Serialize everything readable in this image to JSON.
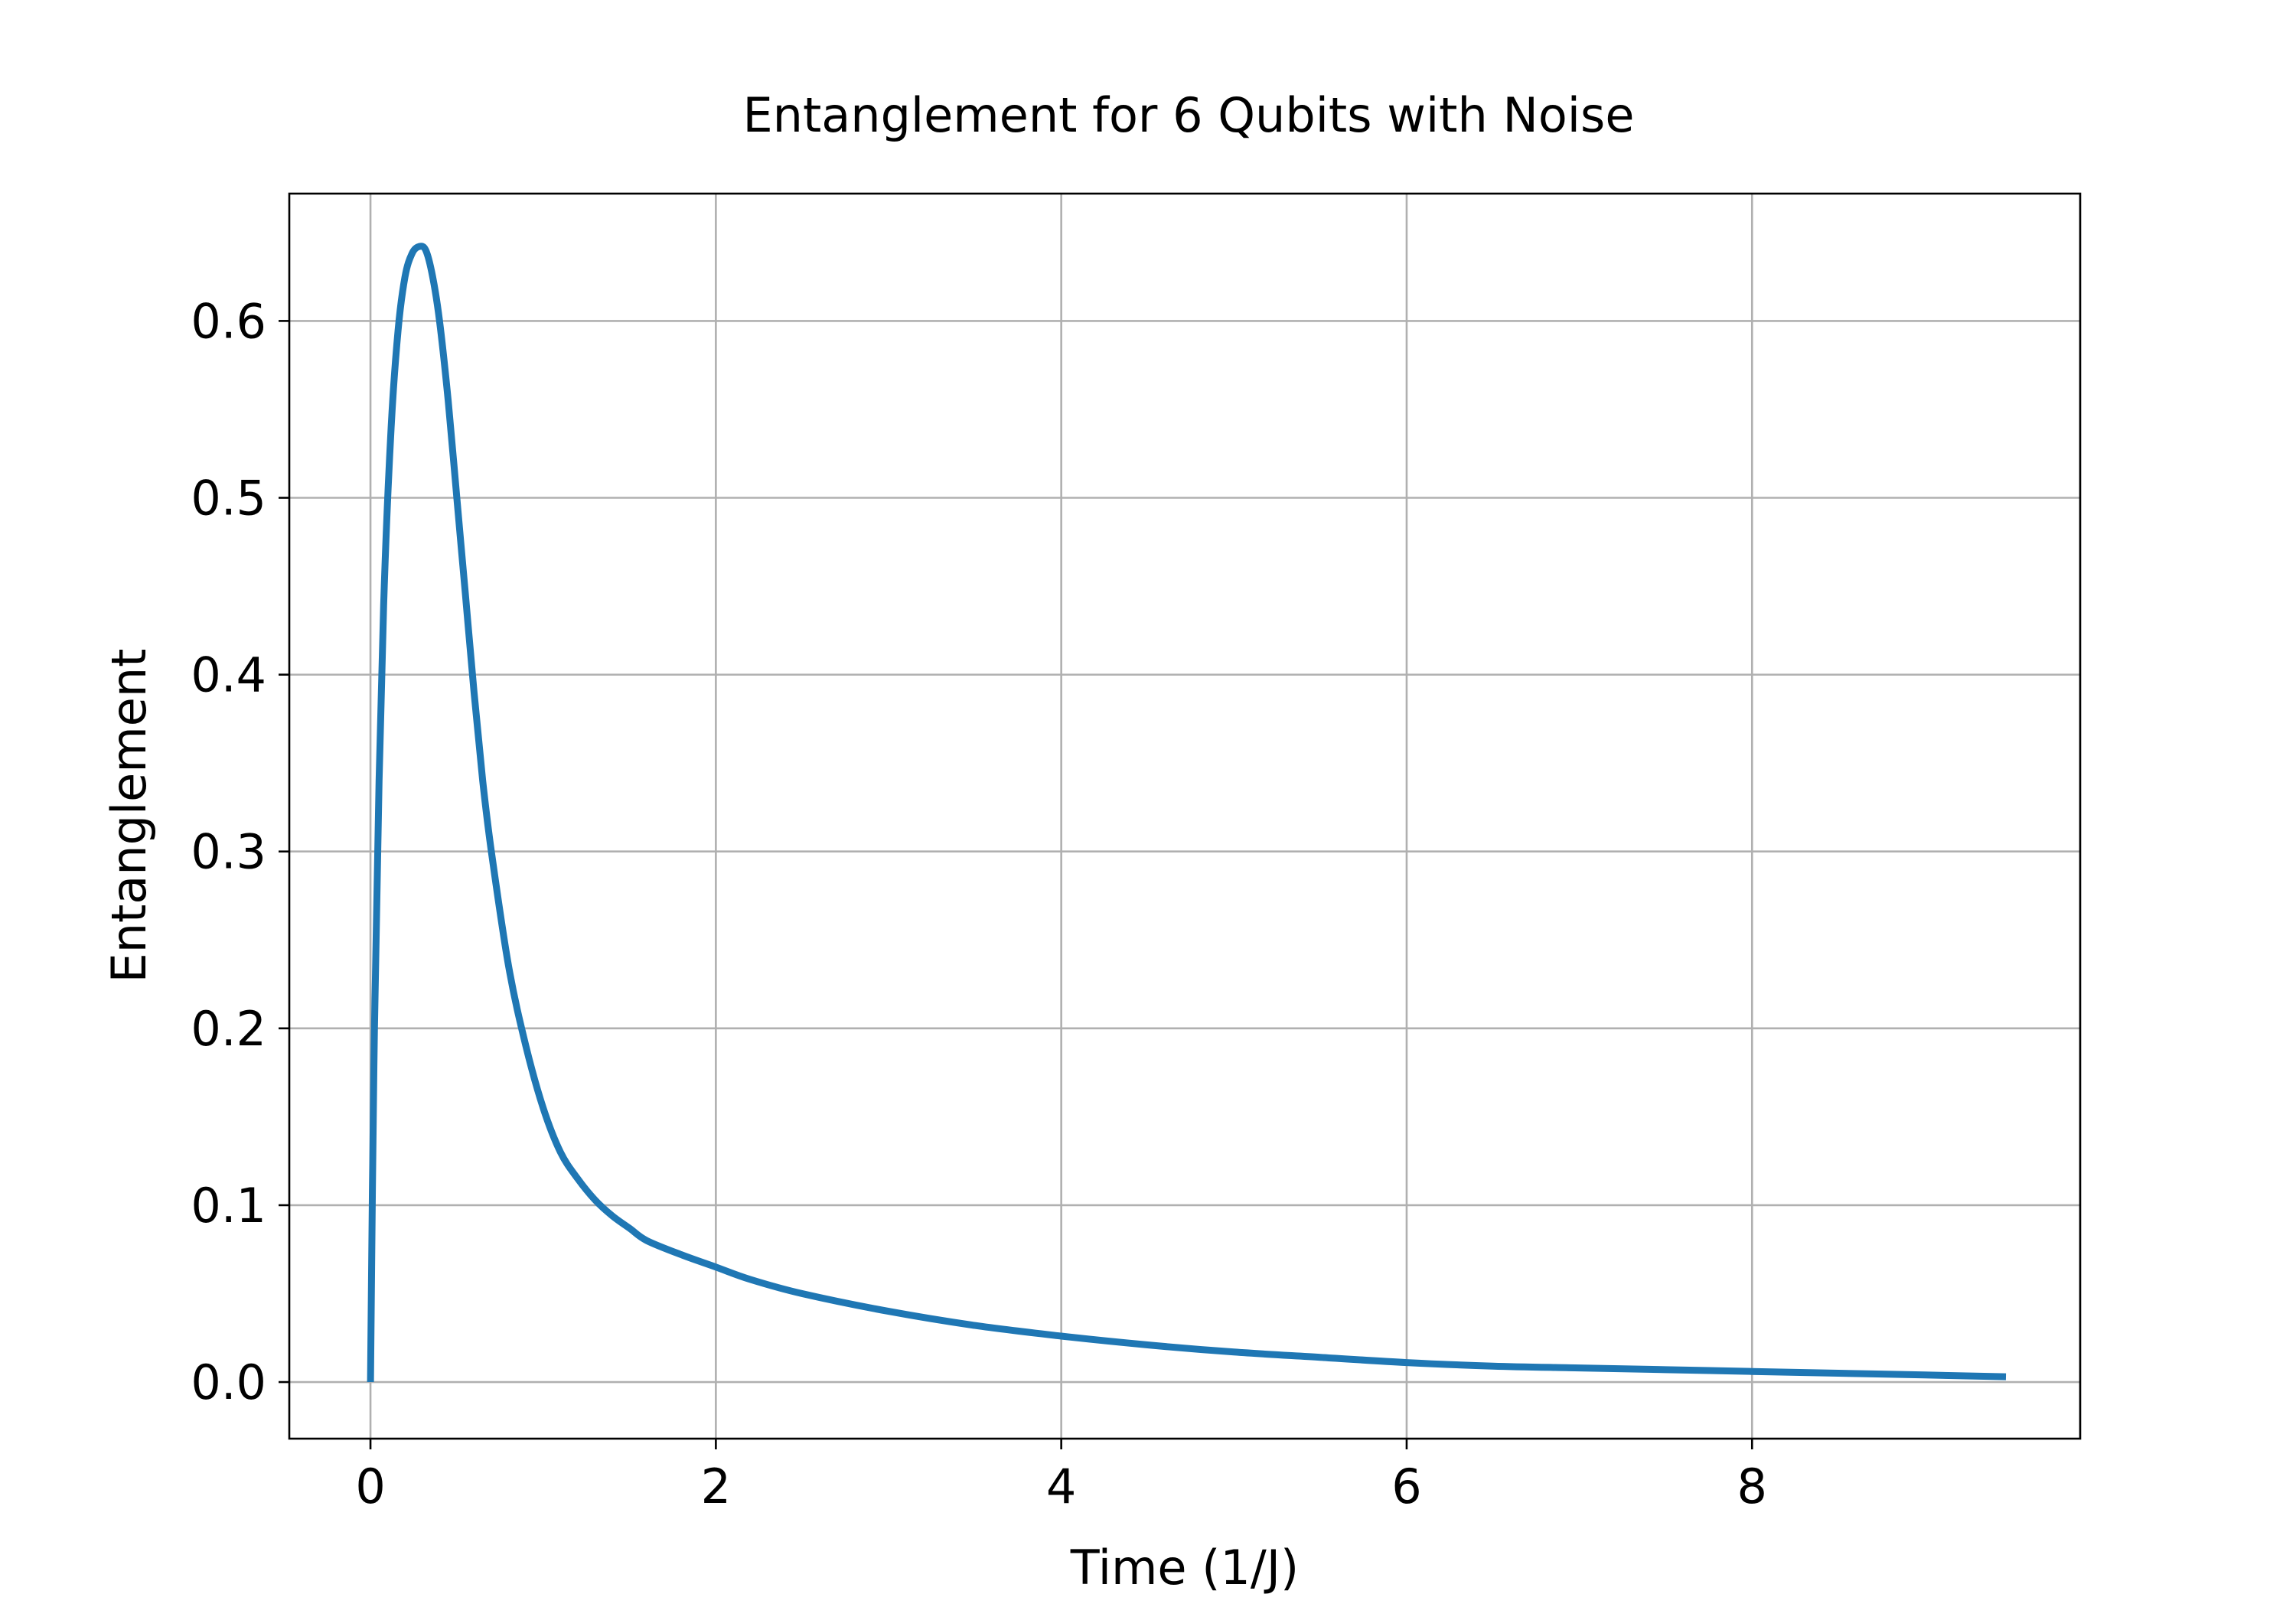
{
  "chart_data": {
    "type": "line",
    "title": "Entanglement for 6 Qubits with Noise",
    "xlabel": "Time (1/J)",
    "ylabel": "Entanglement",
    "xlim": [
      -0.47,
      9.9
    ],
    "ylim": [
      -0.032,
      0.672
    ],
    "xticks": [
      0,
      2,
      4,
      6,
      8
    ],
    "yticks": [
      0.0,
      0.1,
      0.2,
      0.3,
      0.4,
      0.5,
      0.6
    ],
    "xtick_labels": [
      "0",
      "2",
      "4",
      "6",
      "8"
    ],
    "ytick_labels": [
      "0.0",
      "0.1",
      "0.2",
      "0.3",
      "0.4",
      "0.5",
      "0.6"
    ],
    "grid": true,
    "series": [
      {
        "color": "#1f77b4",
        "x": [
          0.0,
          0.02,
          0.05,
          0.08,
          0.12,
          0.16,
          0.2,
          0.24,
          0.28,
          0.32,
          0.36,
          0.4,
          0.45,
          0.5,
          0.55,
          0.6,
          0.65,
          0.7,
          0.8,
          0.9,
          1.0,
          1.1,
          1.2,
          1.3,
          1.4,
          1.5,
          1.6,
          1.8,
          2.0,
          2.2,
          2.5,
          3.0,
          3.5,
          4.0,
          4.5,
          5.0,
          5.5,
          6.0,
          6.5,
          7.0,
          7.5,
          8.0,
          8.5,
          9.0,
          9.47
        ],
        "y": [
          0.0,
          0.18,
          0.34,
          0.45,
          0.54,
          0.595,
          0.625,
          0.638,
          0.642,
          0.64,
          0.625,
          0.6,
          0.555,
          0.5,
          0.445,
          0.39,
          0.34,
          0.3,
          0.235,
          0.19,
          0.155,
          0.13,
          0.115,
          0.103,
          0.094,
          0.087,
          0.08,
          0.072,
          0.065,
          0.058,
          0.05,
          0.04,
          0.032,
          0.026,
          0.021,
          0.017,
          0.014,
          0.011,
          0.009,
          0.008,
          0.007,
          0.006,
          0.005,
          0.004,
          0.003
        ]
      }
    ]
  }
}
